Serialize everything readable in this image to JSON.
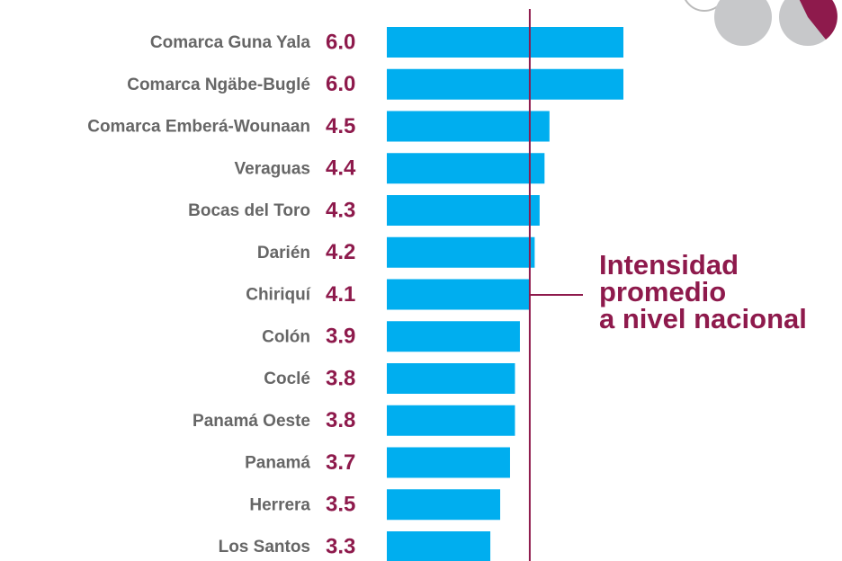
{
  "chart_data": {
    "type": "bar",
    "orientation": "horizontal",
    "categories": [
      "Comarca Guna Yala",
      "Comarca Ngäbe-Buglé",
      "Comarca Emberá-Wounaan",
      "Veraguas",
      "Bocas del Toro",
      "Darién",
      "Chiriquí",
      "Colón",
      "Coclé",
      "Panamá Oeste",
      "Panamá",
      "Herrera",
      "Los Santos"
    ],
    "values": [
      6.0,
      6.0,
      4.5,
      4.4,
      4.3,
      4.2,
      4.1,
      3.9,
      3.8,
      3.8,
      3.7,
      3.5,
      3.3
    ],
    "value_labels": [
      "6.0",
      "6.0",
      "4.5",
      "4.4",
      "4.3",
      "4.2",
      "4.1",
      "3.9",
      "3.8",
      "3.8",
      "3.7",
      "3.5",
      "3.3"
    ],
    "color": "#00aeef",
    "label_color": "#8e1a4c",
    "xlim": [
      1.2,
      6.0
    ],
    "reference_line": {
      "value": 4.1,
      "color": "#8e1a4c",
      "label": [
        "Intensidad",
        "promedio",
        "a nivel nacional"
      ]
    }
  }
}
